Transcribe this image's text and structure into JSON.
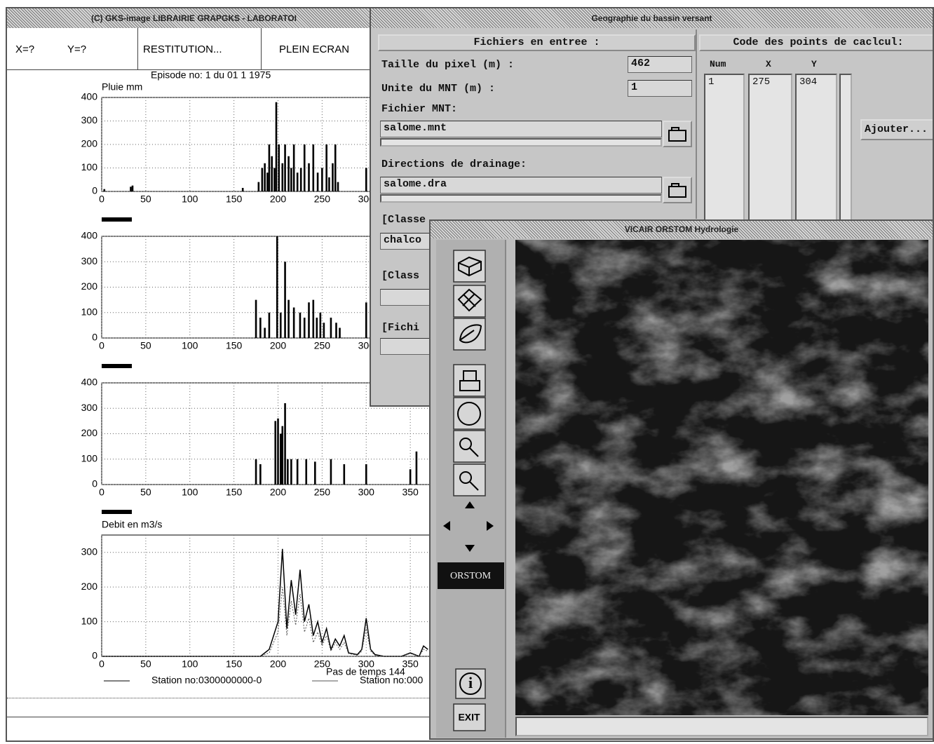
{
  "gks_window": {
    "title": "(C) GKS-image LIBRAIRIE GRAPGKS - LABORATOI",
    "toolbar": [
      "X=?",
      "Y=?",
      "RESTITUTION...",
      "PLEIN ECRAN"
    ],
    "episode": "Episode no: 1 du 01  1 1975"
  },
  "chart_data": [
    {
      "type": "bar",
      "y_label": "Pluie mm",
      "x": [
        3,
        33,
        35,
        160,
        178,
        182,
        185,
        188,
        190,
        193,
        196,
        198,
        201,
        205,
        208,
        212,
        215,
        218,
        222,
        226,
        230,
        235,
        240,
        245,
        250,
        255,
        258,
        262,
        265,
        268,
        300
      ],
      "values": [
        10,
        20,
        25,
        15,
        40,
        100,
        120,
        80,
        200,
        150,
        100,
        380,
        200,
        120,
        200,
        150,
        100,
        200,
        80,
        100,
        200,
        120,
        200,
        80,
        100,
        200,
        60,
        120,
        200,
        40,
        100
      ],
      "color": "#000000",
      "xlim": [
        0,
        400
      ],
      "ylim": [
        0,
        400
      ],
      "xticks": [
        0,
        50,
        100,
        150,
        200,
        250,
        300
      ],
      "yticks": [
        0,
        100,
        200,
        300,
        400
      ],
      "grid": true
    },
    {
      "type": "bar",
      "x": [
        175,
        180,
        185,
        190,
        199,
        203,
        208,
        212,
        218,
        225,
        230,
        235,
        240,
        244,
        248,
        252,
        260,
        266,
        270,
        300
      ],
      "values": [
        150,
        80,
        40,
        100,
        400,
        100,
        300,
        150,
        120,
        100,
        80,
        140,
        150,
        80,
        100,
        60,
        80,
        60,
        40,
        140
      ],
      "color": "#000000",
      "xlim": [
        0,
        400
      ],
      "ylim": [
        0,
        400
      ],
      "xticks": [
        0,
        50,
        100,
        150,
        200,
        250,
        300
      ],
      "yticks": [
        0,
        100,
        200,
        300,
        400
      ],
      "grid": true
    },
    {
      "type": "bar",
      "x": [
        175,
        180,
        197,
        200,
        203,
        205,
        208,
        211,
        215,
        222,
        232,
        242,
        260,
        275,
        300,
        350,
        357
      ],
      "values": [
        100,
        80,
        250,
        260,
        200,
        230,
        320,
        100,
        100,
        100,
        100,
        90,
        100,
        80,
        80,
        60,
        130
      ],
      "color": "#000000",
      "xlim": [
        0,
        400
      ],
      "ylim": [
        0,
        400
      ],
      "xticks": [
        0,
        50,
        100,
        150,
        200,
        250,
        300,
        350
      ],
      "yticks": [
        0,
        100,
        200,
        300,
        400
      ],
      "grid": true
    },
    {
      "type": "line",
      "y_label": "Debit en m3/s",
      "x_label": "Pas de temps 144",
      "x": [
        0,
        180,
        190,
        195,
        200,
        205,
        210,
        215,
        220,
        225,
        230,
        235,
        240,
        245,
        250,
        255,
        260,
        265,
        270,
        275,
        280,
        290,
        295,
        300,
        305,
        310,
        320,
        330,
        340,
        350,
        360,
        365,
        370
      ],
      "series": [
        {
          "name": "Station no:0300000000-0",
          "color": "#000000",
          "values": [
            0,
            0,
            20,
            60,
            100,
            310,
            80,
            220,
            120,
            250,
            100,
            150,
            60,
            100,
            40,
            80,
            20,
            50,
            30,
            60,
            10,
            5,
            20,
            110,
            20,
            5,
            0,
            0,
            0,
            10,
            0,
            30,
            20
          ]
        },
        {
          "name": "Station no:000",
          "color": "#555555",
          "values": [
            0,
            0,
            10,
            40,
            70,
            200,
            60,
            160,
            90,
            180,
            70,
            110,
            40,
            70,
            30,
            60,
            15,
            40,
            20,
            40,
            8,
            3,
            15,
            80,
            15,
            3,
            0,
            0,
            0,
            8,
            0,
            20,
            15
          ]
        }
      ],
      "xlim": [
        0,
        400
      ],
      "ylim": [
        0,
        350
      ],
      "xticks": [
        0,
        50,
        100,
        150,
        200,
        250,
        300,
        350
      ],
      "yticks": [
        0,
        100,
        200,
        300
      ],
      "grid": true
    }
  ],
  "geo_window": {
    "title": "Geographie du bassin versant",
    "inputs_heading": "Fichiers en entree :",
    "pixel_size_label": "Taille du pixel (m) :",
    "pixel_size": 462,
    "mnt_unit_label": "Unite du MNT (m) :",
    "mnt_unit": 1,
    "mnt_file_label": "Fichier MNT:",
    "mnt_file": "salome.mnt",
    "drainage_label": "Directions de drainage:",
    "drainage_file": "salome.dra",
    "class_label_1": "[Classe",
    "class_file_1": "chalco",
    "class_label_2": "[Class",
    "file_label_3": "[Fichi",
    "points_heading": "Code des points de caclcul:",
    "columns": [
      "Num",
      "X",
      "Y"
    ],
    "rows": [
      [
        1,
        275,
        304
      ]
    ],
    "add_button": "Ajouter..."
  },
  "vicair_window": {
    "title": "VICAIR  ORSTOM Hydrologie",
    "logo": "ORSTOM",
    "info": "i",
    "exit": "EXIT"
  }
}
